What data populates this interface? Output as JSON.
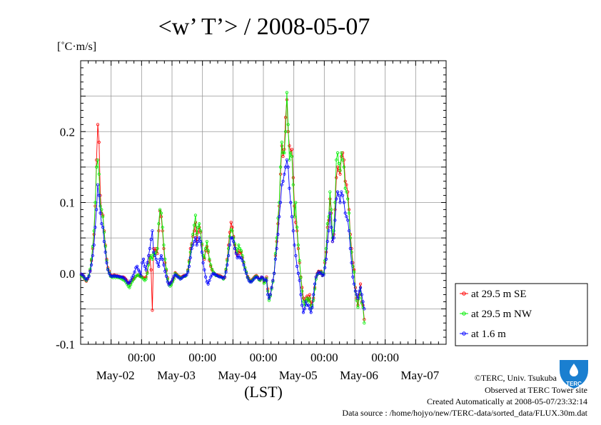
{
  "chart_data": {
    "type": "line",
    "title": "<w’ T’> / 2008-05-07",
    "ylabel": "[˚C·m/s]",
    "xlabel": "(LST)",
    "ylim": [
      -0.1,
      0.3
    ],
    "xlim": [
      0,
      288
    ],
    "y_ticks": [
      {
        "value": -0.1,
        "label": "-0.1"
      },
      {
        "value": 0.0,
        "label": "0.0"
      },
      {
        "value": 0.1,
        "label": "0.1"
      },
      {
        "value": 0.2,
        "label": "0.2"
      }
    ],
    "x_ticks": [
      {
        "x": 48,
        "time": "00:00",
        "date": "May-03"
      },
      {
        "x": 96,
        "time": "00:00",
        "date": "May-04"
      },
      {
        "x": 144,
        "time": "00:00",
        "date": "May-05"
      },
      {
        "x": 192,
        "time": "00:00",
        "date": "May-06"
      },
      {
        "x": 240,
        "time": "00:00",
        "date": "May-07"
      }
    ],
    "date_labels": [
      {
        "x": 24,
        "label": "May-02"
      },
      {
        "x": 72,
        "label": "May-03"
      },
      {
        "x": 120,
        "label": "May-04"
      },
      {
        "x": 168,
        "label": "May-05"
      },
      {
        "x": 216,
        "label": "May-06"
      },
      {
        "x": 264,
        "label": "May-07"
      }
    ],
    "grid": true,
    "legend_position": "right",
    "x_step_hours": 0.5,
    "series": [
      {
        "name": "at 29.5 m SE",
        "color": "#ff0000",
        "values": [
          -0.002,
          -0.003,
          -0.005,
          -0.009,
          -0.011,
          -0.008,
          -0.004,
          0.004,
          0.018,
          0.035,
          0.055,
          0.095,
          0.16,
          0.21,
          0.185,
          0.11,
          0.085,
          0.082,
          0.06,
          0.04,
          0.02,
          0.008,
          0.003,
          -0.002,
          -0.003,
          -0.004,
          -0.002,
          -0.004,
          -0.003,
          -0.004,
          -0.004,
          -0.005,
          -0.006,
          -0.005,
          -0.006,
          -0.008,
          -0.01,
          -0.013,
          -0.015,
          -0.012,
          -0.01,
          -0.008,
          -0.006,
          -0.004,
          -0.003,
          -0.002,
          -0.003,
          -0.004,
          -0.005,
          -0.006,
          -0.007,
          -0.005,
          0.002,
          0.015,
          0.025,
          0.005,
          -0.052,
          0.035,
          0.032,
          0.035,
          0.028,
          0.06,
          0.088,
          0.08,
          0.06,
          0.035,
          0.015,
          0.004,
          -0.006,
          -0.014,
          -0.015,
          -0.013,
          -0.01,
          -0.006,
          0.001,
          -0.001,
          -0.003,
          -0.004,
          -0.006,
          -0.005,
          -0.004,
          -0.003,
          -0.003,
          -0.002,
          0.005,
          0.018,
          0.035,
          0.042,
          0.052,
          0.06,
          0.072,
          0.045,
          0.058,
          0.065,
          0.058,
          0.04,
          0.025,
          0.02,
          0.032,
          0.038,
          0.03,
          0.018,
          0.01,
          0.005,
          0.002,
          0.0,
          -0.002,
          -0.002,
          -0.003,
          -0.003,
          -0.004,
          -0.005,
          -0.007,
          -0.006,
          0.005,
          0.02,
          0.04,
          0.058,
          0.072,
          0.065,
          0.052,
          0.04,
          0.03,
          0.025,
          0.032,
          0.028,
          0.03,
          0.022,
          0.015,
          0.008,
          0.002,
          -0.004,
          -0.007,
          -0.01,
          -0.01,
          -0.008,
          -0.006,
          -0.004,
          -0.003,
          -0.005,
          -0.008,
          -0.009,
          -0.006,
          -0.007,
          -0.012,
          -0.01,
          -0.005,
          -0.022,
          -0.035,
          -0.03,
          -0.02,
          -0.01,
          0.0,
          0.025,
          0.045,
          0.07,
          0.095,
          0.14,
          0.18,
          0.165,
          0.175,
          0.22,
          0.245,
          0.2,
          0.18,
          0.17,
          0.175,
          0.135,
          0.095,
          0.072,
          0.06,
          0.035,
          0.015,
          -0.005,
          -0.02,
          -0.035,
          -0.04,
          -0.035,
          -0.032,
          -0.038,
          -0.03,
          -0.045,
          -0.04,
          -0.035,
          -0.02,
          -0.005,
          0.0,
          0.003,
          0.001,
          0.003,
          -0.002,
          0.0,
          0.015,
          0.03,
          0.065,
          0.075,
          0.105,
          0.085,
          0.045,
          0.055,
          0.09,
          0.135,
          0.15,
          0.145,
          0.14,
          0.165,
          0.17,
          0.16,
          0.13,
          0.125,
          0.115,
          0.09,
          0.055,
          0.035,
          0.015,
          0.005,
          -0.02,
          -0.035,
          -0.045,
          -0.03,
          -0.015,
          -0.04,
          -0.045,
          -0.065
        ]
      },
      {
        "name": "at 29.5 m NW",
        "color": "#00ee00",
        "values": [
          -0.003,
          -0.004,
          -0.006,
          -0.008,
          -0.01,
          -0.007,
          -0.003,
          0.006,
          0.02,
          0.038,
          0.06,
          0.1,
          0.15,
          0.16,
          0.14,
          0.095,
          0.09,
          0.08,
          0.058,
          0.038,
          0.018,
          0.006,
          0.001,
          -0.004,
          -0.005,
          -0.006,
          -0.004,
          -0.006,
          -0.005,
          -0.006,
          -0.006,
          -0.007,
          -0.008,
          -0.009,
          -0.01,
          -0.012,
          -0.015,
          -0.018,
          -0.02,
          -0.016,
          -0.012,
          -0.009,
          -0.007,
          -0.004,
          -0.003,
          -0.002,
          -0.004,
          -0.005,
          -0.006,
          -0.008,
          -0.01,
          -0.008,
          0.0,
          0.012,
          0.022,
          0.025,
          0.02,
          0.028,
          0.026,
          0.03,
          0.035,
          0.07,
          0.09,
          0.085,
          0.065,
          0.04,
          0.02,
          0.006,
          -0.008,
          -0.016,
          -0.018,
          -0.016,
          -0.012,
          -0.008,
          0.0,
          -0.002,
          -0.004,
          -0.005,
          -0.007,
          -0.006,
          -0.005,
          -0.004,
          -0.004,
          -0.002,
          0.004,
          0.016,
          0.03,
          0.04,
          0.055,
          0.068,
          0.082,
          0.055,
          0.065,
          0.07,
          0.06,
          0.042,
          0.025,
          0.022,
          0.035,
          0.045,
          0.032,
          0.02,
          0.012,
          0.006,
          0.002,
          0.0,
          -0.003,
          -0.003,
          -0.004,
          -0.004,
          -0.005,
          -0.006,
          -0.008,
          -0.005,
          0.006,
          0.018,
          0.035,
          0.052,
          0.062,
          0.06,
          0.05,
          0.042,
          0.035,
          0.03,
          0.04,
          0.035,
          0.032,
          0.025,
          0.016,
          0.008,
          0.002,
          -0.005,
          -0.008,
          -0.011,
          -0.011,
          -0.009,
          -0.007,
          -0.005,
          -0.004,
          -0.006,
          -0.009,
          -0.01,
          -0.007,
          -0.008,
          -0.014,
          -0.012,
          -0.007,
          -0.025,
          -0.038,
          -0.032,
          -0.022,
          -0.012,
          0.0,
          0.028,
          0.05,
          0.078,
          0.1,
          0.15,
          0.185,
          0.17,
          0.17,
          0.2,
          0.255,
          0.21,
          0.16,
          0.17,
          0.165,
          0.125,
          0.08,
          0.1,
          0.065,
          0.04,
          0.018,
          -0.006,
          -0.025,
          -0.04,
          -0.045,
          -0.038,
          -0.035,
          -0.04,
          -0.035,
          -0.05,
          -0.045,
          -0.038,
          -0.022,
          -0.008,
          -0.002,
          0.002,
          0.0,
          0.002,
          -0.003,
          0.0,
          0.018,
          0.035,
          0.07,
          0.08,
          0.115,
          0.09,
          0.05,
          0.06,
          0.1,
          0.16,
          0.17,
          0.155,
          0.145,
          0.17,
          0.16,
          0.15,
          0.12,
          0.115,
          0.105,
          0.085,
          0.05,
          0.03,
          0.01,
          0.002,
          -0.025,
          -0.038,
          -0.048,
          -0.035,
          -0.02,
          -0.042,
          -0.048,
          -0.07
        ]
      },
      {
        "name": "at 1.6 m",
        "color": "#0000ff",
        "values": [
          -0.001,
          -0.002,
          -0.004,
          -0.007,
          -0.009,
          -0.007,
          -0.004,
          0.003,
          0.012,
          0.025,
          0.04,
          0.065,
          0.09,
          0.125,
          0.11,
          0.085,
          0.07,
          0.065,
          0.045,
          0.03,
          0.015,
          0.005,
          0.0,
          -0.003,
          -0.004,
          -0.004,
          -0.003,
          -0.004,
          -0.004,
          -0.004,
          -0.005,
          -0.005,
          -0.005,
          -0.006,
          -0.007,
          -0.009,
          -0.012,
          -0.014,
          -0.013,
          -0.01,
          -0.006,
          -0.003,
          0.002,
          0.008,
          0.01,
          0.005,
          0.002,
          -0.003,
          0.015,
          0.02,
          0.01,
          0.005,
          0.015,
          0.025,
          0.035,
          0.048,
          0.06,
          0.03,
          0.025,
          0.02,
          0.015,
          0.01,
          0.02,
          0.025,
          0.02,
          0.012,
          0.003,
          -0.004,
          -0.012,
          -0.016,
          -0.014,
          -0.012,
          -0.008,
          -0.004,
          -0.002,
          -0.003,
          -0.005,
          -0.006,
          -0.008,
          -0.007,
          -0.005,
          -0.004,
          -0.003,
          -0.002,
          0.002,
          0.01,
          0.022,
          0.035,
          0.04,
          0.045,
          0.05,
          0.04,
          0.045,
          0.05,
          0.045,
          0.03,
          0.015,
          0.005,
          -0.005,
          -0.012,
          -0.015,
          -0.01,
          -0.005,
          -0.002,
          0.0,
          -0.001,
          -0.002,
          -0.003,
          -0.004,
          -0.005,
          -0.005,
          -0.006,
          -0.007,
          -0.005,
          0.002,
          0.012,
          0.025,
          0.04,
          0.05,
          0.05,
          0.045,
          0.035,
          0.028,
          0.022,
          0.025,
          0.022,
          0.022,
          0.018,
          0.012,
          0.005,
          0.0,
          -0.006,
          -0.01,
          -0.012,
          -0.012,
          -0.01,
          -0.008,
          -0.006,
          -0.005,
          -0.006,
          -0.008,
          -0.008,
          -0.005,
          -0.006,
          -0.01,
          -0.008,
          -0.01,
          -0.03,
          -0.035,
          -0.03,
          -0.02,
          -0.01,
          0.0,
          0.02,
          0.035,
          0.055,
          0.08,
          0.1,
          0.125,
          0.13,
          0.14,
          0.15,
          0.16,
          0.15,
          0.12,
          0.1,
          0.08,
          0.06,
          0.04,
          0.025,
          0.01,
          0.0,
          -0.01,
          -0.03,
          -0.045,
          -0.055,
          -0.05,
          -0.04,
          -0.045,
          -0.045,
          -0.05,
          -0.055,
          -0.048,
          -0.03,
          -0.015,
          -0.005,
          -0.001,
          0.002,
          0.0,
          0.001,
          -0.003,
          -0.002,
          0.008,
          0.02,
          0.045,
          0.06,
          0.085,
          0.065,
          0.045,
          0.05,
          0.075,
          0.105,
          0.115,
          0.11,
          0.1,
          0.115,
          0.11,
          0.1,
          0.085,
          0.08,
          0.075,
          0.06,
          0.035,
          0.015,
          -0.005,
          -0.015,
          -0.025,
          -0.03,
          -0.035,
          -0.025,
          -0.02,
          -0.03,
          -0.04,
          -0.05
        ]
      }
    ]
  },
  "footer": {
    "copyright": "©TERC, Univ. Tsukuba",
    "observed": "Observed at TERC Tower site",
    "created": "Created Automatically at 2008-05-07/23:32:14",
    "source": "Data source : /home/hojyo/new/TERC-data/sorted_data/FLUX.30m.dat"
  },
  "logo": {
    "icon": "terc-logo-icon",
    "text": "TERC",
    "color": "#1a7fd0"
  }
}
